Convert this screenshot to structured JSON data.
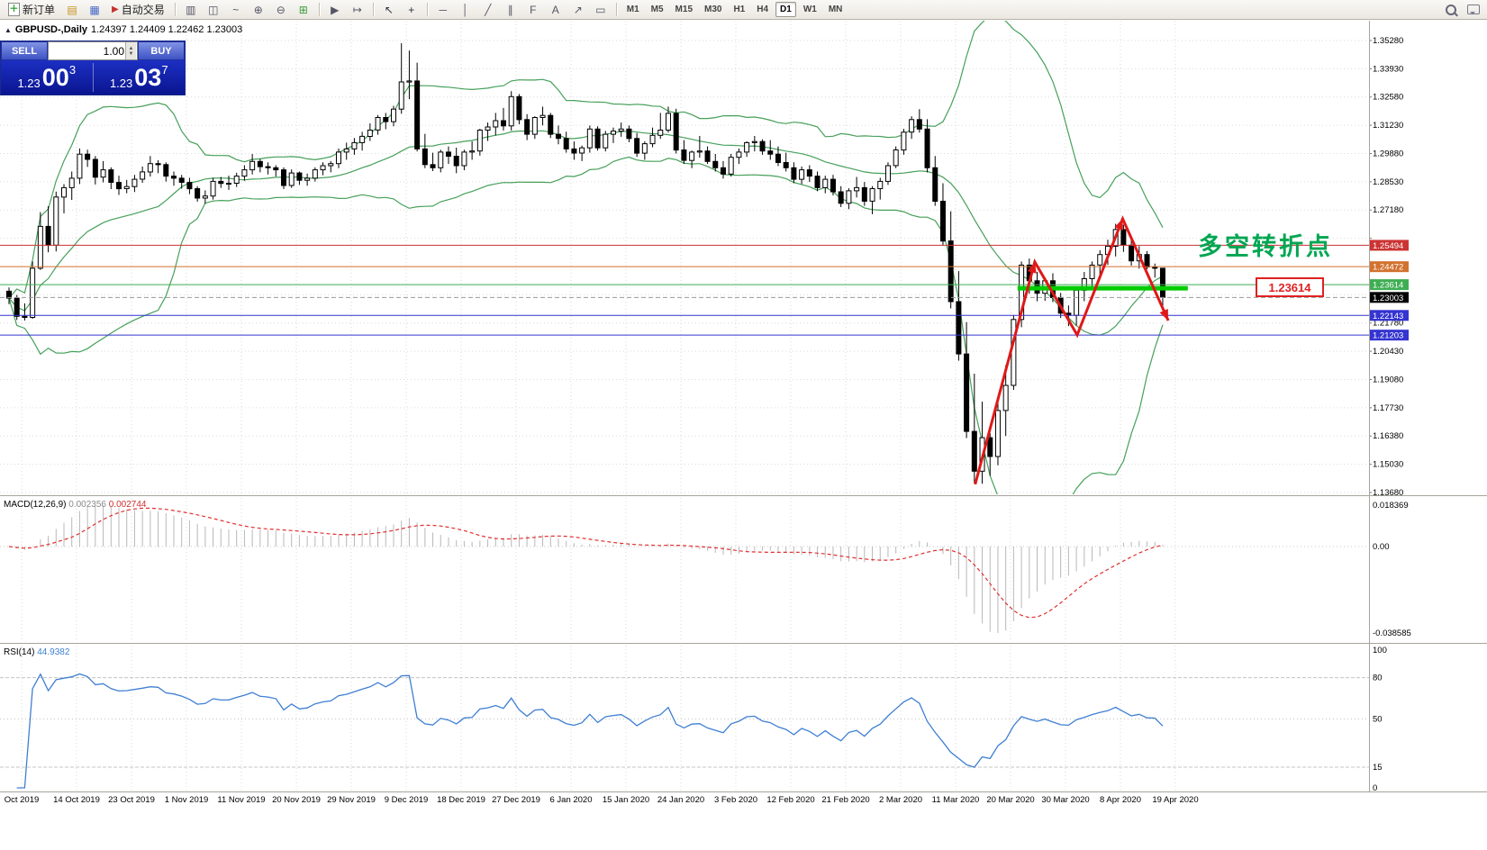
{
  "toolbar": {
    "new_order_label": "新订单",
    "autotrade_label": "自动交易",
    "left_icons": [
      {
        "name": "charts-window-icon",
        "glyph": "▤",
        "color": "#c89020"
      },
      {
        "name": "market-watch-icon",
        "glyph": "▦",
        "color": "#4868c8"
      }
    ],
    "chart_tool_icons": [
      {
        "name": "bar-chart-icon",
        "glyph": "▥",
        "color": "#556"
      },
      {
        "name": "candlestick-chart-icon",
        "glyph": "◫",
        "color": "#556"
      },
      {
        "name": "line-chart-icon",
        "glyph": "~",
        "color": "#556"
      },
      {
        "name": "zoom-in-icon",
        "glyph": "⊕",
        "color": "#556"
      },
      {
        "name": "zoom-out-icon",
        "glyph": "⊖",
        "color": "#556"
      },
      {
        "name": "tile-windows-icon",
        "glyph": "⊞",
        "color": "#3a9a3a"
      }
    ],
    "nav_icons": [
      {
        "name": "auto-scroll-icon",
        "glyph": "▶",
        "color": "#556"
      },
      {
        "name": "shift-chart-icon",
        "glyph": "↦",
        "color": "#556"
      }
    ],
    "pointer_icons": [
      {
        "name": "cursor-icon",
        "glyph": "↖",
        "color": "#334"
      },
      {
        "name": "crosshair-icon",
        "glyph": "+",
        "color": "#334"
      }
    ],
    "draw_icons": [
      {
        "name": "horizontal-line-icon",
        "glyph": "─",
        "color": "#556"
      },
      {
        "name": "vertical-line-icon",
        "glyph": "│",
        "color": "#556"
      },
      {
        "name": "trendline-icon",
        "glyph": "╱",
        "color": "#556"
      },
      {
        "name": "channel-icon",
        "glyph": "∥",
        "color": "#556"
      },
      {
        "name": "fibonacci-icon",
        "glyph": "F",
        "color": "#556"
      },
      {
        "name": "text-icon",
        "glyph": "A",
        "color": "#556"
      },
      {
        "name": "arrows-icon",
        "glyph": "↗",
        "color": "#556"
      },
      {
        "name": "shapes-icon",
        "glyph": "▭",
        "color": "#556"
      }
    ],
    "timeframes": [
      "M1",
      "M5",
      "M15",
      "M30",
      "H1",
      "H4",
      "D1",
      "W1",
      "MN"
    ],
    "active_timeframe": "D1"
  },
  "chart_header": {
    "collapse_icon": "▲",
    "symbol_period": "GBPUSD-,Daily",
    "ohlc_text": "1.24397 1.24409 1.22462 1.23003"
  },
  "one_click": {
    "sell_label": "SELL",
    "buy_label": "BUY",
    "volume": "1.00",
    "sell_price_head": "1.23",
    "sell_price_big": "00",
    "sell_price_sup": "3",
    "buy_price_head": "1.23",
    "buy_price_big": "03",
    "buy_price_sup": "7"
  },
  "indicators": {
    "macd_name": "MACD(12,26,9)",
    "macd_main_value": "0.002356",
    "macd_signal_value": "0.002744",
    "rsi_name": "RSI(14)",
    "rsi_value": "44.9382"
  },
  "annotations": {
    "turning_point_text": "多空转折点",
    "support_label": "1.23614"
  },
  "chart_data": {
    "type": "candlestick",
    "title": "GBPUSD- Daily",
    "symbol": "GBPUSD-",
    "period": "Daily",
    "last_ohlc": {
      "open": 1.24397,
      "high": 1.24409,
      "low": 1.22462,
      "close": 1.23003
    },
    "x_labels": [
      "Oct 2019",
      "14 Oct 2019",
      "23 Oct 2019",
      "1 Nov 2019",
      "11 Nov 2019",
      "20 Nov 2019",
      "29 Nov 2019",
      "9 Dec 2019",
      "18 Dec 2019",
      "27 Dec 2019",
      "6 Jan 2020",
      "15 Jan 2020",
      "24 Jan 2020",
      "3 Feb 2020",
      "12 Feb 2020",
      "21 Feb 2020",
      "2 Mar 2020",
      "11 Mar 2020",
      "20 Mar 2020",
      "30 Mar 2020",
      "8 Apr 2020",
      "19 Apr 2020"
    ],
    "y_axis_values": [
      1.3528,
      1.3393,
      1.3258,
      1.3123,
      1.2988,
      1.2853,
      1.2718,
      1.2583,
      1.2448,
      1.2313,
      1.2178,
      1.2043,
      1.1908,
      1.1773,
      1.1638,
      1.1503,
      1.1368
    ],
    "bollinger": {
      "period": 20,
      "deviations": 2,
      "color": "#46a05a"
    },
    "hlines": [
      {
        "value": 1.25494,
        "label": "1.25494",
        "color": "#cc3333"
      },
      {
        "value": 1.24472,
        "label": "1.24472",
        "color": "#d2722f"
      },
      {
        "value": 1.23614,
        "label": "1.23614",
        "color": "#3fae53"
      },
      {
        "value": 1.22143,
        "label": "1.22143",
        "color": "#3434d0"
      },
      {
        "value": 1.21203,
        "label": "1.21203",
        "color": "#3434d0"
      }
    ],
    "current_price": {
      "value": 1.23003,
      "label": "1.23003"
    },
    "support_segment": {
      "price": 1.2344,
      "i1": 128.5,
      "i2": 150.2,
      "color": "#00cc00",
      "width": 5
    },
    "zigzag": {
      "color": "#e01818",
      "points": [
        [
          123.1,
          1.1407
        ],
        [
          130.7,
          1.247
        ],
        [
          136.1,
          1.2121
        ],
        [
          141.9,
          1.2676
        ],
        [
          147.7,
          1.219
        ]
      ],
      "arrow_at": [
        1,
        3,
        4
      ]
    },
    "macd": {
      "fast": 12,
      "slow": 26,
      "signal": 9,
      "axis_labels": [
        "0.018369",
        "0.00",
        "-0.038585"
      ],
      "histogram_color": "#b8b8b8",
      "signal_color": "#e03030"
    },
    "rsi": {
      "period": 14,
      "color": "#3f7fd2",
      "axis_labels": [
        "100",
        "80",
        "50",
        "15",
        "0"
      ],
      "axis_values": [
        100,
        80,
        50,
        15,
        0
      ],
      "levels": [
        80,
        50,
        15
      ]
    },
    "candles": [
      [
        1.233,
        1.2348,
        1.2268,
        1.2297
      ],
      [
        1.2297,
        1.2312,
        1.2193,
        1.221
      ],
      [
        1.221,
        1.2272,
        1.219,
        1.2205
      ],
      [
        1.2205,
        1.2472,
        1.2198,
        1.244
      ],
      [
        1.244,
        1.2708,
        1.2432,
        1.264
      ],
      [
        1.264,
        1.2736,
        1.2516,
        1.255
      ],
      [
        1.255,
        1.2806,
        1.252,
        1.278
      ],
      [
        1.278,
        1.2842,
        1.2702,
        1.2825
      ],
      [
        1.2825,
        1.2902,
        1.2766,
        1.287
      ],
      [
        1.287,
        1.3012,
        1.2842,
        1.2985
      ],
      [
        1.2985,
        1.3006,
        1.2924,
        1.296
      ],
      [
        1.296,
        1.2976,
        1.284,
        1.2875
      ],
      [
        1.2875,
        1.2952,
        1.285,
        1.291
      ],
      [
        1.291,
        1.2922,
        1.2818,
        1.285
      ],
      [
        1.285,
        1.2882,
        1.279,
        1.282
      ],
      [
        1.282,
        1.2862,
        1.2798,
        1.283
      ],
      [
        1.283,
        1.2886,
        1.2804,
        1.2865
      ],
      [
        1.2865,
        1.2926,
        1.2848,
        1.29
      ],
      [
        1.29,
        1.2976,
        1.2878,
        1.294
      ],
      [
        1.294,
        1.2956,
        1.2894,
        1.2935
      ],
      [
        1.2935,
        1.2946,
        1.2854,
        1.288
      ],
      [
        1.288,
        1.2902,
        1.2834,
        1.287
      ],
      [
        1.287,
        1.2886,
        1.282,
        1.285
      ],
      [
        1.285,
        1.2872,
        1.2794,
        1.282
      ],
      [
        1.282,
        1.2832,
        1.2758,
        1.2775
      ],
      [
        1.2775,
        1.2812,
        1.2748,
        1.2785
      ],
      [
        1.2785,
        1.2872,
        1.2768,
        1.2855
      ],
      [
        1.2855,
        1.2876,
        1.2824,
        1.2845
      ],
      [
        1.2845,
        1.2882,
        1.2814,
        1.2846
      ],
      [
        1.2846,
        1.2896,
        1.2828,
        1.288
      ],
      [
        1.288,
        1.2932,
        1.2858,
        1.291
      ],
      [
        1.291,
        1.2986,
        1.2888,
        1.295
      ],
      [
        1.295,
        1.2962,
        1.2898,
        1.2925
      ],
      [
        1.2925,
        1.2946,
        1.2888,
        1.292
      ],
      [
        1.292,
        1.2932,
        1.2878,
        1.291
      ],
      [
        1.291,
        1.2922,
        1.2818,
        1.2835
      ],
      [
        1.2835,
        1.2912,
        1.2824,
        1.2895
      ],
      [
        1.2895,
        1.2902,
        1.2838,
        1.286
      ],
      [
        1.286,
        1.2892,
        1.2834,
        1.287
      ],
      [
        1.287,
        1.2922,
        1.2854,
        1.291
      ],
      [
        1.291,
        1.2946,
        1.2884,
        1.293
      ],
      [
        1.293,
        1.2952,
        1.2898,
        1.294
      ],
      [
        1.294,
        1.3012,
        1.2918,
        1.2995
      ],
      [
        1.2995,
        1.304,
        1.2958,
        1.301
      ],
      [
        1.301,
        1.3062,
        1.2982,
        1.304
      ],
      [
        1.304,
        1.3092,
        1.3002,
        1.307
      ],
      [
        1.307,
        1.3132,
        1.3048,
        1.31
      ],
      [
        1.31,
        1.3172,
        1.3078,
        1.316
      ],
      [
        1.316,
        1.3182,
        1.3104,
        1.314
      ],
      [
        1.314,
        1.3216,
        1.3118,
        1.32
      ],
      [
        1.32,
        1.3515,
        1.3178,
        1.333
      ],
      [
        1.333,
        1.348,
        1.3248,
        1.3335
      ],
      [
        1.3335,
        1.3422,
        1.2998,
        1.301
      ],
      [
        1.301,
        1.3082,
        1.2918,
        1.2935
      ],
      [
        1.2935,
        1.2992,
        1.2904,
        1.292
      ],
      [
        1.292,
        1.3006,
        1.2898,
        1.2995
      ],
      [
        1.2995,
        1.3022,
        1.2938,
        1.2975
      ],
      [
        1.2975,
        1.3016,
        1.2894,
        1.293
      ],
      [
        1.293,
        1.3006,
        1.2908,
        1.2995
      ],
      [
        1.2995,
        1.3046,
        1.2958,
        1.3
      ],
      [
        1.3,
        1.3106,
        1.2978,
        1.31
      ],
      [
        1.31,
        1.3136,
        1.3048,
        1.3115
      ],
      [
        1.3115,
        1.3182,
        1.3074,
        1.3145
      ],
      [
        1.3145,
        1.3206,
        1.3098,
        1.312
      ],
      [
        1.312,
        1.3286,
        1.3098,
        1.326
      ],
      [
        1.326,
        1.3272,
        1.3128,
        1.315
      ],
      [
        1.315,
        1.3176,
        1.3052,
        1.308
      ],
      [
        1.308,
        1.3166,
        1.3058,
        1.316
      ],
      [
        1.316,
        1.3212,
        1.3122,
        1.317
      ],
      [
        1.317,
        1.3182,
        1.3062,
        1.308
      ],
      [
        1.308,
        1.3122,
        1.3032,
        1.306
      ],
      [
        1.306,
        1.3092,
        1.2992,
        1.301
      ],
      [
        1.301,
        1.3046,
        1.2958,
        1.299
      ],
      [
        1.299,
        1.3026,
        1.2952,
        1.3015
      ],
      [
        1.3015,
        1.3122,
        1.2992,
        1.3105
      ],
      [
        1.3105,
        1.3118,
        1.3002,
        1.3015
      ],
      [
        1.3015,
        1.3096,
        1.2998,
        1.308
      ],
      [
        1.308,
        1.3112,
        1.3038,
        1.3095
      ],
      [
        1.3095,
        1.3136,
        1.3068,
        1.3105
      ],
      [
        1.3105,
        1.3122,
        1.3042,
        1.306
      ],
      [
        1.306,
        1.3086,
        1.2972,
        1.299
      ],
      [
        1.299,
        1.3046,
        1.2958,
        1.3035
      ],
      [
        1.3035,
        1.3112,
        1.3018,
        1.3075
      ],
      [
        1.3075,
        1.3182,
        1.3058,
        1.31
      ],
      [
        1.31,
        1.3212,
        1.3088,
        1.318
      ],
      [
        1.318,
        1.3202,
        1.2988,
        1.3005
      ],
      [
        1.3005,
        1.3052,
        1.2938,
        1.2955
      ],
      [
        1.2955,
        1.3002,
        1.2918,
        1.2995
      ],
      [
        1.2995,
        1.3072,
        1.2968,
        1.3
      ],
      [
        1.3,
        1.3022,
        1.2938,
        1.295
      ],
      [
        1.295,
        1.2986,
        1.2902,
        1.292
      ],
      [
        1.292,
        1.2952,
        1.2868,
        1.289
      ],
      [
        1.289,
        1.2986,
        1.2878,
        1.297
      ],
      [
        1.297,
        1.3012,
        1.2938,
        1.2995
      ],
      [
        1.2995,
        1.3046,
        1.2972,
        1.304
      ],
      [
        1.304,
        1.3072,
        1.2998,
        1.3045
      ],
      [
        1.3045,
        1.3056,
        1.2982,
        1.3
      ],
      [
        1.3,
        1.3052,
        1.2958,
        1.2985
      ],
      [
        1.2985,
        1.3022,
        1.2928,
        1.2945
      ],
      [
        1.2945,
        1.2992,
        1.2902,
        1.292
      ],
      [
        1.292,
        1.2946,
        1.2846,
        1.2865
      ],
      [
        1.2865,
        1.2926,
        1.2842,
        1.291
      ],
      [
        1.291,
        1.2932,
        1.2852,
        1.288
      ],
      [
        1.288,
        1.2902,
        1.2808,
        1.2825
      ],
      [
        1.2825,
        1.2882,
        1.2798,
        1.2865
      ],
      [
        1.2865,
        1.2886,
        1.2788,
        1.2805
      ],
      [
        1.2805,
        1.2832,
        1.2732,
        1.275
      ],
      [
        1.275,
        1.2822,
        1.2722,
        1.281
      ],
      [
        1.281,
        1.2876,
        1.2778,
        1.2825
      ],
      [
        1.2825,
        1.2852,
        1.2738,
        1.276
      ],
      [
        1.276,
        1.2832,
        1.2698,
        1.282
      ],
      [
        1.282,
        1.2872,
        1.2768,
        1.2855
      ],
      [
        1.2855,
        1.2946,
        1.2838,
        1.293
      ],
      [
        1.293,
        1.3022,
        1.2918,
        1.3005
      ],
      [
        1.3005,
        1.3106,
        1.2982,
        1.309
      ],
      [
        1.309,
        1.3166,
        1.3058,
        1.315
      ],
      [
        1.315,
        1.32,
        1.3088,
        1.3105
      ],
      [
        1.3105,
        1.3152,
        1.2898,
        1.292
      ],
      [
        1.292,
        1.2976,
        1.2738,
        1.276
      ],
      [
        1.276,
        1.2846,
        1.2548,
        1.257
      ],
      [
        1.257,
        1.2712,
        1.2248,
        1.228
      ],
      [
        1.228,
        1.2426,
        1.1998,
        1.203
      ],
      [
        1.203,
        1.2182,
        1.1628,
        1.166
      ],
      [
        1.166,
        1.1936,
        1.1412,
        1.147
      ],
      [
        1.147,
        1.1802,
        1.141,
        1.163
      ],
      [
        1.163,
        1.1652,
        1.1448,
        1.154
      ],
      [
        1.154,
        1.1802,
        1.1498,
        1.176
      ],
      [
        1.176,
        1.1976,
        1.1638,
        1.188
      ],
      [
        1.188,
        1.2216,
        1.1858,
        1.2195
      ],
      [
        1.2195,
        1.2472,
        1.2158,
        1.2455
      ],
      [
        1.2455,
        1.2486,
        1.2318,
        1.238
      ],
      [
        1.238,
        1.2422,
        1.2282,
        1.232
      ],
      [
        1.232,
        1.2396,
        1.2284,
        1.238
      ],
      [
        1.238,
        1.2416,
        1.2278,
        1.23
      ],
      [
        1.23,
        1.2322,
        1.2202,
        1.2225
      ],
      [
        1.2225,
        1.2262,
        1.2163,
        1.2215
      ],
      [
        1.2215,
        1.2352,
        1.2166,
        1.2335
      ],
      [
        1.2335,
        1.2422,
        1.2282,
        1.239
      ],
      [
        1.239,
        1.2472,
        1.2342,
        1.2455
      ],
      [
        1.2455,
        1.2526,
        1.2406,
        1.2505
      ],
      [
        1.2505,
        1.2576,
        1.2456,
        1.2545
      ],
      [
        1.2545,
        1.2652,
        1.2496,
        1.2625
      ],
      [
        1.2625,
        1.2648,
        1.2518,
        1.255
      ],
      [
        1.255,
        1.2582,
        1.2452,
        1.2475
      ],
      [
        1.2475,
        1.2546,
        1.2438,
        1.2505
      ],
      [
        1.2505,
        1.2522,
        1.2435,
        1.2445
      ],
      [
        1.2445,
        1.2462,
        1.2395,
        1.244
      ],
      [
        1.24397,
        1.24409,
        1.22462,
        1.23003
      ]
    ]
  }
}
